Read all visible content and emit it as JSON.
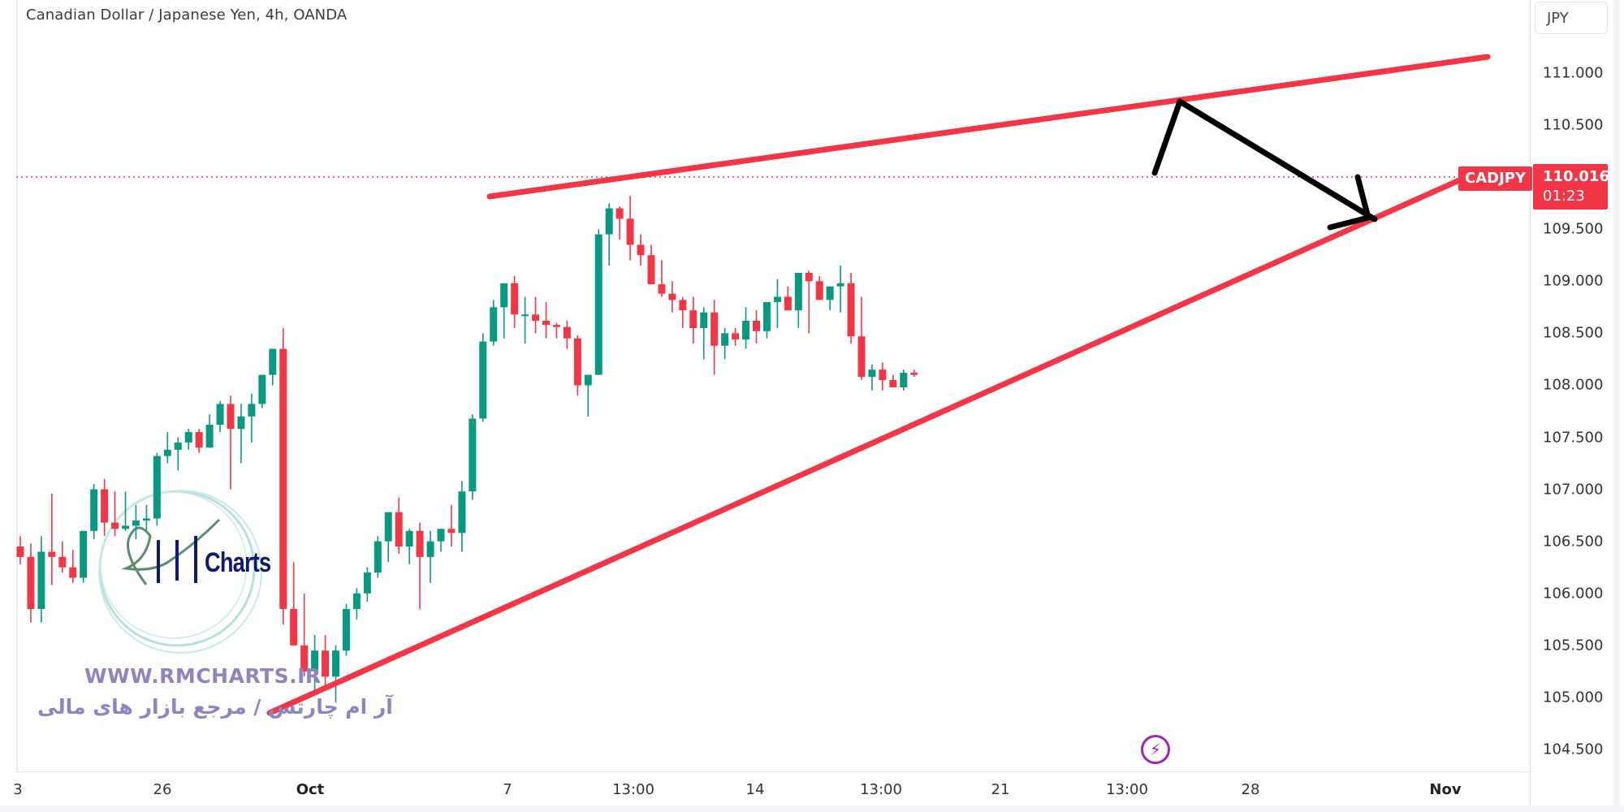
{
  "header": {
    "title": "Canadian Dollar / Japanese Yen, 4h, OANDA",
    "currency_button": "JPY"
  },
  "price_axis": {
    "ticks": [
      "111.000",
      "110.500",
      "110.000",
      "109.500",
      "109.000",
      "108.500",
      "108.000",
      "107.500",
      "107.000",
      "106.500",
      "106.000",
      "105.500",
      "105.000",
      "104.500"
    ],
    "visible_ticks": [
      "111.000",
      "110.500",
      "109.500",
      "109.000",
      "108.500",
      "108.000",
      "107.500",
      "107.000",
      "106.500",
      "106.000",
      "105.500",
      "105.000",
      "104.500"
    ]
  },
  "last_price": {
    "symbol": "CADJPY",
    "price": "110.016",
    "countdown": "01:23",
    "color": "#f23645"
  },
  "time_axis": {
    "labels": [
      {
        "text": "3",
        "bold": false
      },
      {
        "text": "26",
        "bold": false
      },
      {
        "text": "Oct",
        "bold": true
      },
      {
        "text": "7",
        "bold": false
      },
      {
        "text": "13:00",
        "bold": false
      },
      {
        "text": "14",
        "bold": false
      },
      {
        "text": "13:00",
        "bold": false
      },
      {
        "text": "21",
        "bold": false
      },
      {
        "text": "13:00",
        "bold": false
      },
      {
        "text": "28",
        "bold": false
      },
      {
        "text": "Nov",
        "bold": true
      }
    ]
  },
  "watermark": {
    "logo_text": "Charts",
    "url": "WWW.RMCHARTS.IR",
    "tagline_fa": "آر ام چارتس / مرجع بازار های مالی"
  },
  "colors": {
    "up": "#089981",
    "down": "#f23645",
    "trendline": "#f23645",
    "arrow": "#000000",
    "event_icon": "#9c27b0"
  },
  "chart_data": {
    "type": "candlestick",
    "title": "Canadian Dollar / Japanese Yen, 4h, OANDA",
    "symbol": "CADJPY",
    "timeframe": "4h",
    "ylabel": "JPY",
    "ylim": [
      104.3,
      111.5
    ],
    "x_tick_labels": [
      "3",
      "26",
      "Oct",
      "7",
      "13:00",
      "14",
      "13:00",
      "21",
      "13:00",
      "28",
      "Nov"
    ],
    "last_price": 110.016,
    "candles": [
      {
        "o": 106.45,
        "h": 106.55,
        "l": 106.28,
        "c": 106.35
      },
      {
        "o": 106.35,
        "h": 106.48,
        "l": 105.72,
        "c": 105.85
      },
      {
        "o": 105.85,
        "h": 106.55,
        "l": 105.72,
        "c": 106.4
      },
      {
        "o": 106.4,
        "h": 106.96,
        "l": 106.08,
        "c": 106.35
      },
      {
        "o": 106.35,
        "h": 106.5,
        "l": 106.2,
        "c": 106.25
      },
      {
        "o": 106.25,
        "h": 106.42,
        "l": 106.1,
        "c": 106.15
      },
      {
        "o": 106.15,
        "h": 106.6,
        "l": 106.1,
        "c": 106.6
      },
      {
        "o": 106.6,
        "h": 107.05,
        "l": 106.52,
        "c": 107.0
      },
      {
        "o": 107.0,
        "h": 107.1,
        "l": 106.55,
        "c": 106.68
      },
      {
        "o": 106.68,
        "h": 106.98,
        "l": 106.55,
        "c": 106.62
      },
      {
        "o": 106.62,
        "h": 106.98,
        "l": 106.6,
        "c": 106.65
      },
      {
        "o": 106.65,
        "h": 106.85,
        "l": 106.52,
        "c": 106.7
      },
      {
        "o": 106.7,
        "h": 106.85,
        "l": 106.6,
        "c": 106.72
      },
      {
        "o": 106.72,
        "h": 107.35,
        "l": 106.65,
        "c": 107.32
      },
      {
        "o": 107.32,
        "h": 107.55,
        "l": 107.25,
        "c": 107.38
      },
      {
        "o": 107.38,
        "h": 107.5,
        "l": 107.18,
        "c": 107.45
      },
      {
        "o": 107.45,
        "h": 107.58,
        "l": 107.38,
        "c": 107.55
      },
      {
        "o": 107.55,
        "h": 107.58,
        "l": 107.35,
        "c": 107.4
      },
      {
        "o": 107.4,
        "h": 107.72,
        "l": 107.4,
        "c": 107.62
      },
      {
        "o": 107.62,
        "h": 107.85,
        "l": 107.55,
        "c": 107.82
      },
      {
        "o": 107.82,
        "h": 107.9,
        "l": 107.0,
        "c": 107.58
      },
      {
        "o": 107.58,
        "h": 107.82,
        "l": 107.25,
        "c": 107.7
      },
      {
        "o": 107.7,
        "h": 107.92,
        "l": 107.45,
        "c": 107.82
      },
      {
        "o": 107.82,
        "h": 108.05,
        "l": 107.78,
        "c": 108.1
      },
      {
        "o": 108.1,
        "h": 108.28,
        "l": 108.0,
        "c": 108.35
      },
      {
        "o": 108.35,
        "h": 108.55,
        "l": 105.7,
        "c": 105.85
      },
      {
        "o": 105.85,
        "h": 106.3,
        "l": 105.7,
        "c": 105.5
      },
      {
        "o": 105.5,
        "h": 106.0,
        "l": 105.2,
        "c": 105.25
      },
      {
        "o": 105.25,
        "h": 105.6,
        "l": 105.05,
        "c": 105.45
      },
      {
        "o": 105.45,
        "h": 105.6,
        "l": 105.1,
        "c": 105.2
      },
      {
        "o": 105.2,
        "h": 105.5,
        "l": 104.95,
        "c": 105.45
      },
      {
        "o": 105.45,
        "h": 105.9,
        "l": 105.4,
        "c": 105.85
      },
      {
        "o": 105.85,
        "h": 106.05,
        "l": 105.75,
        "c": 106.0
      },
      {
        "o": 106.0,
        "h": 106.25,
        "l": 105.92,
        "c": 106.2
      },
      {
        "o": 106.2,
        "h": 106.55,
        "l": 106.15,
        "c": 106.5
      },
      {
        "o": 106.5,
        "h": 106.75,
        "l": 106.3,
        "c": 106.78
      },
      {
        "o": 106.78,
        "h": 106.92,
        "l": 106.38,
        "c": 106.45
      },
      {
        "o": 106.45,
        "h": 106.62,
        "l": 106.28,
        "c": 106.6
      },
      {
        "o": 106.6,
        "h": 106.68,
        "l": 105.85,
        "c": 106.35
      },
      {
        "o": 106.35,
        "h": 106.6,
        "l": 106.1,
        "c": 106.5
      },
      {
        "o": 106.5,
        "h": 106.62,
        "l": 106.4,
        "c": 106.62
      },
      {
        "o": 106.62,
        "h": 106.85,
        "l": 106.45,
        "c": 106.58
      },
      {
        "o": 106.58,
        "h": 107.08,
        "l": 106.4,
        "c": 106.98
      },
      {
        "o": 106.98,
        "h": 107.72,
        "l": 106.9,
        "c": 107.68
      },
      {
        "o": 107.68,
        "h": 108.5,
        "l": 107.65,
        "c": 108.42
      },
      {
        "o": 108.42,
        "h": 108.82,
        "l": 108.38,
        "c": 108.75
      },
      {
        "o": 108.75,
        "h": 108.95,
        "l": 108.45,
        "c": 108.98
      },
      {
        "o": 108.98,
        "h": 109.05,
        "l": 108.55,
        "c": 108.68
      },
      {
        "o": 108.68,
        "h": 108.85,
        "l": 108.4,
        "c": 108.68
      },
      {
        "o": 108.68,
        "h": 108.85,
        "l": 108.5,
        "c": 108.62
      },
      {
        "o": 108.62,
        "h": 108.8,
        "l": 108.45,
        "c": 108.58
      },
      {
        "o": 108.58,
        "h": 108.6,
        "l": 108.45,
        "c": 108.56
      },
      {
        "o": 108.56,
        "h": 108.62,
        "l": 108.35,
        "c": 108.45
      },
      {
        "o": 108.45,
        "h": 108.48,
        "l": 107.9,
        "c": 108.0
      },
      {
        "o": 108.0,
        "h": 108.1,
        "l": 107.7,
        "c": 108.1
      },
      {
        "o": 108.1,
        "h": 109.5,
        "l": 108.1,
        "c": 109.45
      },
      {
        "o": 109.45,
        "h": 109.75,
        "l": 109.15,
        "c": 109.7
      },
      {
        "o": 109.7,
        "h": 109.72,
        "l": 109.4,
        "c": 109.6
      },
      {
        "o": 109.6,
        "h": 109.82,
        "l": 109.2,
        "c": 109.35
      },
      {
        "o": 109.35,
        "h": 109.45,
        "l": 109.15,
        "c": 109.25
      },
      {
        "o": 109.25,
        "h": 109.35,
        "l": 108.98,
        "c": 108.97
      },
      {
        "o": 108.97,
        "h": 109.2,
        "l": 108.85,
        "c": 108.88
      },
      {
        "o": 108.88,
        "h": 109.0,
        "l": 108.7,
        "c": 108.82
      },
      {
        "o": 108.82,
        "h": 108.85,
        "l": 108.55,
        "c": 108.72
      },
      {
        "o": 108.72,
        "h": 108.85,
        "l": 108.4,
        "c": 108.55
      },
      {
        "o": 108.55,
        "h": 108.75,
        "l": 108.25,
        "c": 108.7
      },
      {
        "o": 108.7,
        "h": 108.82,
        "l": 108.1,
        "c": 108.38
      },
      {
        "o": 108.38,
        "h": 108.55,
        "l": 108.25,
        "c": 108.5
      },
      {
        "o": 108.5,
        "h": 108.55,
        "l": 108.38,
        "c": 108.44
      },
      {
        "o": 108.44,
        "h": 108.75,
        "l": 108.35,
        "c": 108.62
      },
      {
        "o": 108.62,
        "h": 108.72,
        "l": 108.4,
        "c": 108.52
      },
      {
        "o": 108.52,
        "h": 108.78,
        "l": 108.45,
        "c": 108.8
      },
      {
        "o": 108.8,
        "h": 109.02,
        "l": 108.55,
        "c": 108.85
      },
      {
        "o": 108.85,
        "h": 108.95,
        "l": 108.72,
        "c": 108.72
      },
      {
        "o": 108.72,
        "h": 109.05,
        "l": 108.55,
        "c": 109.08
      },
      {
        "o": 109.08,
        "h": 109.1,
        "l": 108.5,
        "c": 109.0
      },
      {
        "o": 109.0,
        "h": 109.05,
        "l": 108.82,
        "c": 108.82
      },
      {
        "o": 108.82,
        "h": 108.92,
        "l": 108.72,
        "c": 108.95
      },
      {
        "o": 108.95,
        "h": 109.15,
        "l": 108.7,
        "c": 108.98
      },
      {
        "o": 108.98,
        "h": 109.08,
        "l": 108.4,
        "c": 108.47
      },
      {
        "o": 108.47,
        "h": 108.85,
        "l": 108.05,
        "c": 108.08
      },
      {
        "o": 108.08,
        "h": 108.2,
        "l": 107.95,
        "c": 108.15
      },
      {
        "o": 108.15,
        "h": 108.22,
        "l": 107.95,
        "c": 108.05
      },
      {
        "o": 108.05,
        "h": 108.1,
        "l": 107.98,
        "c": 107.98
      },
      {
        "o": 107.98,
        "h": 108.15,
        "l": 107.95,
        "c": 108.12
      },
      {
        "o": 108.12,
        "h": 108.15,
        "l": 108.08,
        "c": 108.1
      }
    ],
    "overlays": [
      {
        "type": "trendline",
        "role": "upper",
        "color": "#f23645",
        "from": [
          6.5,
          109.82
        ],
        "to": [
          111.5,
          111.15
        ]
      },
      {
        "type": "trendline",
        "role": "lower",
        "color": "#f23645",
        "from": [
          29.5,
          104.85
        ],
        "to": [
          111.5,
          110.0
        ]
      },
      {
        "type": "arrow",
        "color": "#000000",
        "points": [
          [
            110.016,
            109.5
          ],
          [
            110.75,
            109.88
          ],
          [
            109.6,
            109.62
          ]
        ],
        "note": "projected rise to upper line then drop to lower line"
      }
    ]
  }
}
